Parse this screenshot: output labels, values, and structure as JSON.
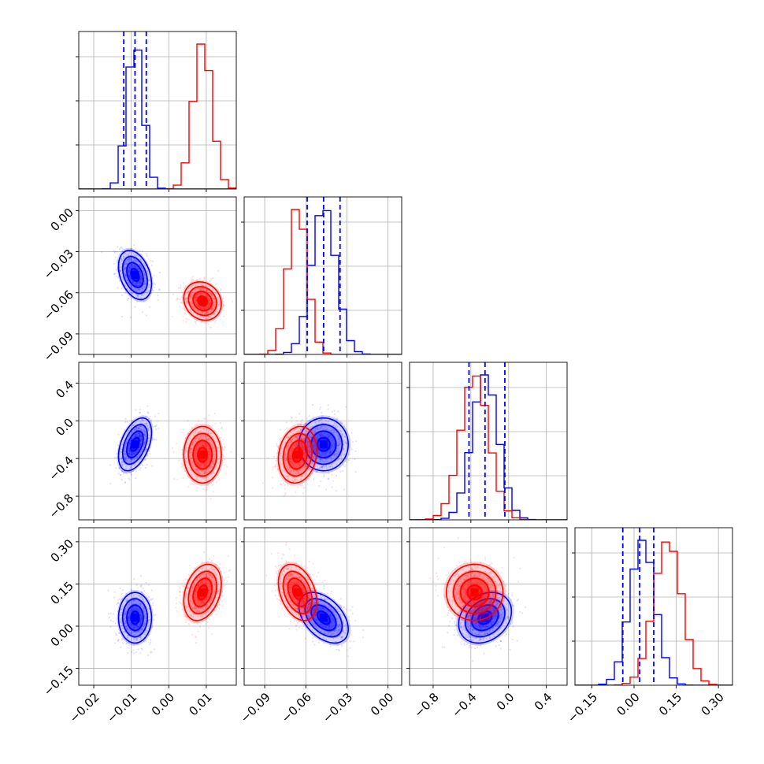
{
  "chart_data": {
    "type": "corner",
    "parameter_count": 4,
    "grid": true,
    "colors": {
      "blue": "#0000ff",
      "red": "#ff0000"
    },
    "axes": [
      {
        "range": [
          -0.024,
          0.018
        ],
        "ticks": [
          -0.02,
          -0.01,
          0.0,
          0.01
        ],
        "tick_labels": [
          "−0.02",
          "−0.01",
          "0.00",
          "0.01"
        ]
      },
      {
        "range": [
          -0.105,
          0.01
        ],
        "ticks": [
          -0.09,
          -0.06,
          -0.03,
          0.0
        ],
        "tick_labels": [
          "−0.09",
          "−0.06",
          "−0.03",
          "0.00"
        ]
      },
      {
        "range": [
          -1.05,
          0.62
        ],
        "ticks": [
          -0.8,
          -0.4,
          0.0,
          0.4
        ],
        "tick_labels": [
          "−0.8",
          "−0.4",
          "0.0",
          "0.4"
        ]
      },
      {
        "range": [
          -0.21,
          0.35
        ],
        "ticks": [
          -0.15,
          0.0,
          0.15,
          0.3
        ],
        "tick_labels": [
          "−0.15",
          "0.00",
          "0.15",
          "0.30"
        ]
      }
    ],
    "series": [
      {
        "color": "blue",
        "mean": [
          -0.009,
          -0.047,
          -0.25,
          0.03
        ],
        "sd": [
          0.0022,
          0.009,
          0.14,
          0.045
        ],
        "corr": {
          "0-1": -0.35,
          "0-2": 0.45,
          "0-3": 0.0,
          "1-2": 0.0,
          "1-3": -0.45,
          "2-3": 0.25
        },
        "quantiles": [
          [
            -0.012,
            -0.009,
            -0.006
          ],
          [
            -0.059,
            -0.047,
            -0.035
          ],
          [
            -0.42,
            -0.25,
            -0.04
          ],
          [
            -0.04,
            0.02,
            0.07
          ]
        ]
      },
      {
        "color": "red",
        "mean": [
          0.009,
          -0.066,
          -0.36,
          0.12
        ],
        "sd": [
          0.0025,
          0.007,
          0.15,
          0.05
        ],
        "corr": {
          "0-1": -0.15,
          "0-2": 0.0,
          "0-3": 0.3,
          "1-2": 0.15,
          "1-3": -0.35,
          "2-3": 0.0
        }
      }
    ]
  }
}
